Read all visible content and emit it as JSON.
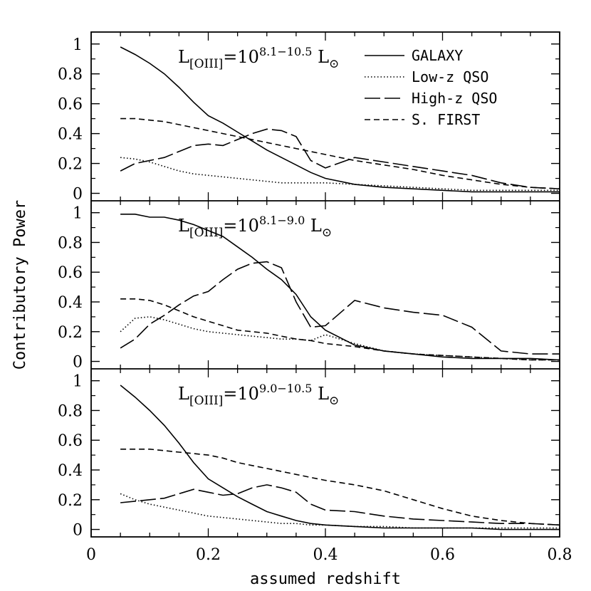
{
  "chart_data": {
    "type": "line",
    "xlabel": "assumed redshift",
    "ylabel": "Contributory Power",
    "xlim": [
      0,
      0.8
    ],
    "ylim": [
      -0.05,
      1.08
    ],
    "x_ticks": [
      "0",
      "0.2",
      "0.4",
      "0.6",
      "0.8"
    ],
    "y_ticks": [
      "0",
      "0.2",
      "0.4",
      "0.6",
      "0.8",
      "1"
    ],
    "legend": [
      {
        "name": "GALAXY",
        "style": "solid"
      },
      {
        "name": "Low-z QSO",
        "style": "dotted"
      },
      {
        "name": "High-z QSO",
        "style": "longdash"
      },
      {
        "name": "S. FIRST",
        "style": "shortdash"
      }
    ],
    "x": [
      0.05,
      0.075,
      0.1,
      0.125,
      0.15,
      0.175,
      0.2,
      0.225,
      0.25,
      0.275,
      0.3,
      0.325,
      0.35,
      0.375,
      0.4,
      0.45,
      0.5,
      0.55,
      0.6,
      0.65,
      0.7,
      0.75,
      0.8
    ],
    "panels": [
      {
        "annotation": {
          "prefix": "L",
          "sub": "[OIII]",
          "mid": "=10",
          "sup": "8.1−10.5",
          "unit": "L",
          "unit_sub": "⊙"
        },
        "series": [
          {
            "name": "GALAXY",
            "values": [
              0.98,
              0.93,
              0.87,
              0.8,
              0.71,
              0.61,
              0.52,
              0.47,
              0.41,
              0.35,
              0.29,
              0.24,
              0.19,
              0.14,
              0.1,
              0.06,
              0.04,
              0.03,
              0.02,
              0.01,
              0.01,
              0.01,
              0.01
            ]
          },
          {
            "name": "Low-z QSO",
            "values": [
              0.24,
              0.23,
              0.21,
              0.18,
              0.15,
              0.13,
              0.12,
              0.11,
              0.1,
              0.09,
              0.08,
              0.07,
              0.07,
              0.07,
              0.07,
              0.06,
              0.05,
              0.04,
              0.03,
              0.02,
              0.02,
              0.02,
              0.02
            ]
          },
          {
            "name": "High-z QSO",
            "values": [
              0.15,
              0.2,
              0.22,
              0.24,
              0.28,
              0.32,
              0.33,
              0.32,
              0.36,
              0.4,
              0.43,
              0.42,
              0.38,
              0.22,
              0.17,
              0.24,
              0.21,
              0.18,
              0.15,
              0.12,
              0.07,
              0.04,
              0.03
            ]
          },
          {
            "name": "S. FIRST",
            "values": [
              0.5,
              0.5,
              0.49,
              0.48,
              0.46,
              0.44,
              0.42,
              0.4,
              0.38,
              0.36,
              0.34,
              0.32,
              0.3,
              0.28,
              0.26,
              0.22,
              0.19,
              0.16,
              0.12,
              0.09,
              0.06,
              0.04,
              0.03
            ]
          }
        ]
      },
      {
        "annotation": {
          "prefix": "L",
          "sub": "[OIII]",
          "mid": "=10",
          "sup": "8.1−9.0",
          "unit": "L",
          "unit_sub": "⊙"
        },
        "series": [
          {
            "name": "GALAXY",
            "values": [
              0.99,
              0.99,
              0.97,
              0.97,
              0.95,
              0.92,
              0.88,
              0.84,
              0.77,
              0.7,
              0.62,
              0.55,
              0.45,
              0.3,
              0.21,
              0.11,
              0.07,
              0.05,
              0.03,
              0.02,
              0.02,
              0.02,
              0.01
            ]
          },
          {
            "name": "Low-z QSO",
            "values": [
              0.2,
              0.29,
              0.3,
              0.28,
              0.25,
              0.22,
              0.2,
              0.19,
              0.18,
              0.17,
              0.16,
              0.15,
              0.15,
              0.14,
              0.18,
              0.12,
              0.07,
              0.05,
              0.04,
              0.03,
              0.02,
              0.01,
              0.01
            ]
          },
          {
            "name": "High-z QSO",
            "values": [
              0.09,
              0.15,
              0.25,
              0.31,
              0.38,
              0.44,
              0.47,
              0.55,
              0.62,
              0.66,
              0.67,
              0.63,
              0.4,
              0.23,
              0.24,
              0.41,
              0.36,
              0.33,
              0.31,
              0.23,
              0.07,
              0.05,
              0.05
            ]
          },
          {
            "name": "S. FIRST",
            "values": [
              0.42,
              0.42,
              0.41,
              0.38,
              0.34,
              0.3,
              0.27,
              0.24,
              0.21,
              0.2,
              0.19,
              0.17,
              0.15,
              0.14,
              0.12,
              0.1,
              0.07,
              0.05,
              0.04,
              0.03,
              0.02,
              0.01,
              0.01
            ]
          }
        ]
      },
      {
        "annotation": {
          "prefix": "L",
          "sub": "[OIII]",
          "mid": "=10",
          "sup": "9.0−10.5",
          "unit": "L",
          "unit_sub": "⊙"
        },
        "series": [
          {
            "name": "GALAXY",
            "values": [
              0.97,
              0.89,
              0.8,
              0.7,
              0.58,
              0.45,
              0.34,
              0.28,
              0.22,
              0.17,
              0.12,
              0.09,
              0.06,
              0.04,
              0.03,
              0.02,
              0.01,
              0.01,
              0.01,
              0.01,
              0.0,
              0.0,
              0.0
            ]
          },
          {
            "name": "Low-z QSO",
            "values": [
              0.24,
              0.2,
              0.17,
              0.15,
              0.13,
              0.11,
              0.09,
              0.08,
              0.07,
              0.06,
              0.05,
              0.04,
              0.04,
              0.03,
              0.03,
              0.02,
              0.02,
              0.01,
              0.01,
              0.01,
              0.01,
              0.01,
              0.01
            ]
          },
          {
            "name": "High-z QSO",
            "values": [
              0.18,
              0.19,
              0.2,
              0.21,
              0.24,
              0.27,
              0.25,
              0.23,
              0.24,
              0.28,
              0.3,
              0.28,
              0.25,
              0.17,
              0.13,
              0.12,
              0.09,
              0.07,
              0.06,
              0.05,
              0.04,
              0.04,
              0.03
            ]
          },
          {
            "name": "S. FIRST",
            "values": [
              0.54,
              0.54,
              0.54,
              0.53,
              0.52,
              0.51,
              0.5,
              0.48,
              0.45,
              0.43,
              0.41,
              0.39,
              0.37,
              0.35,
              0.33,
              0.3,
              0.26,
              0.2,
              0.14,
              0.09,
              0.06,
              0.04,
              0.03
            ]
          }
        ]
      }
    ]
  }
}
